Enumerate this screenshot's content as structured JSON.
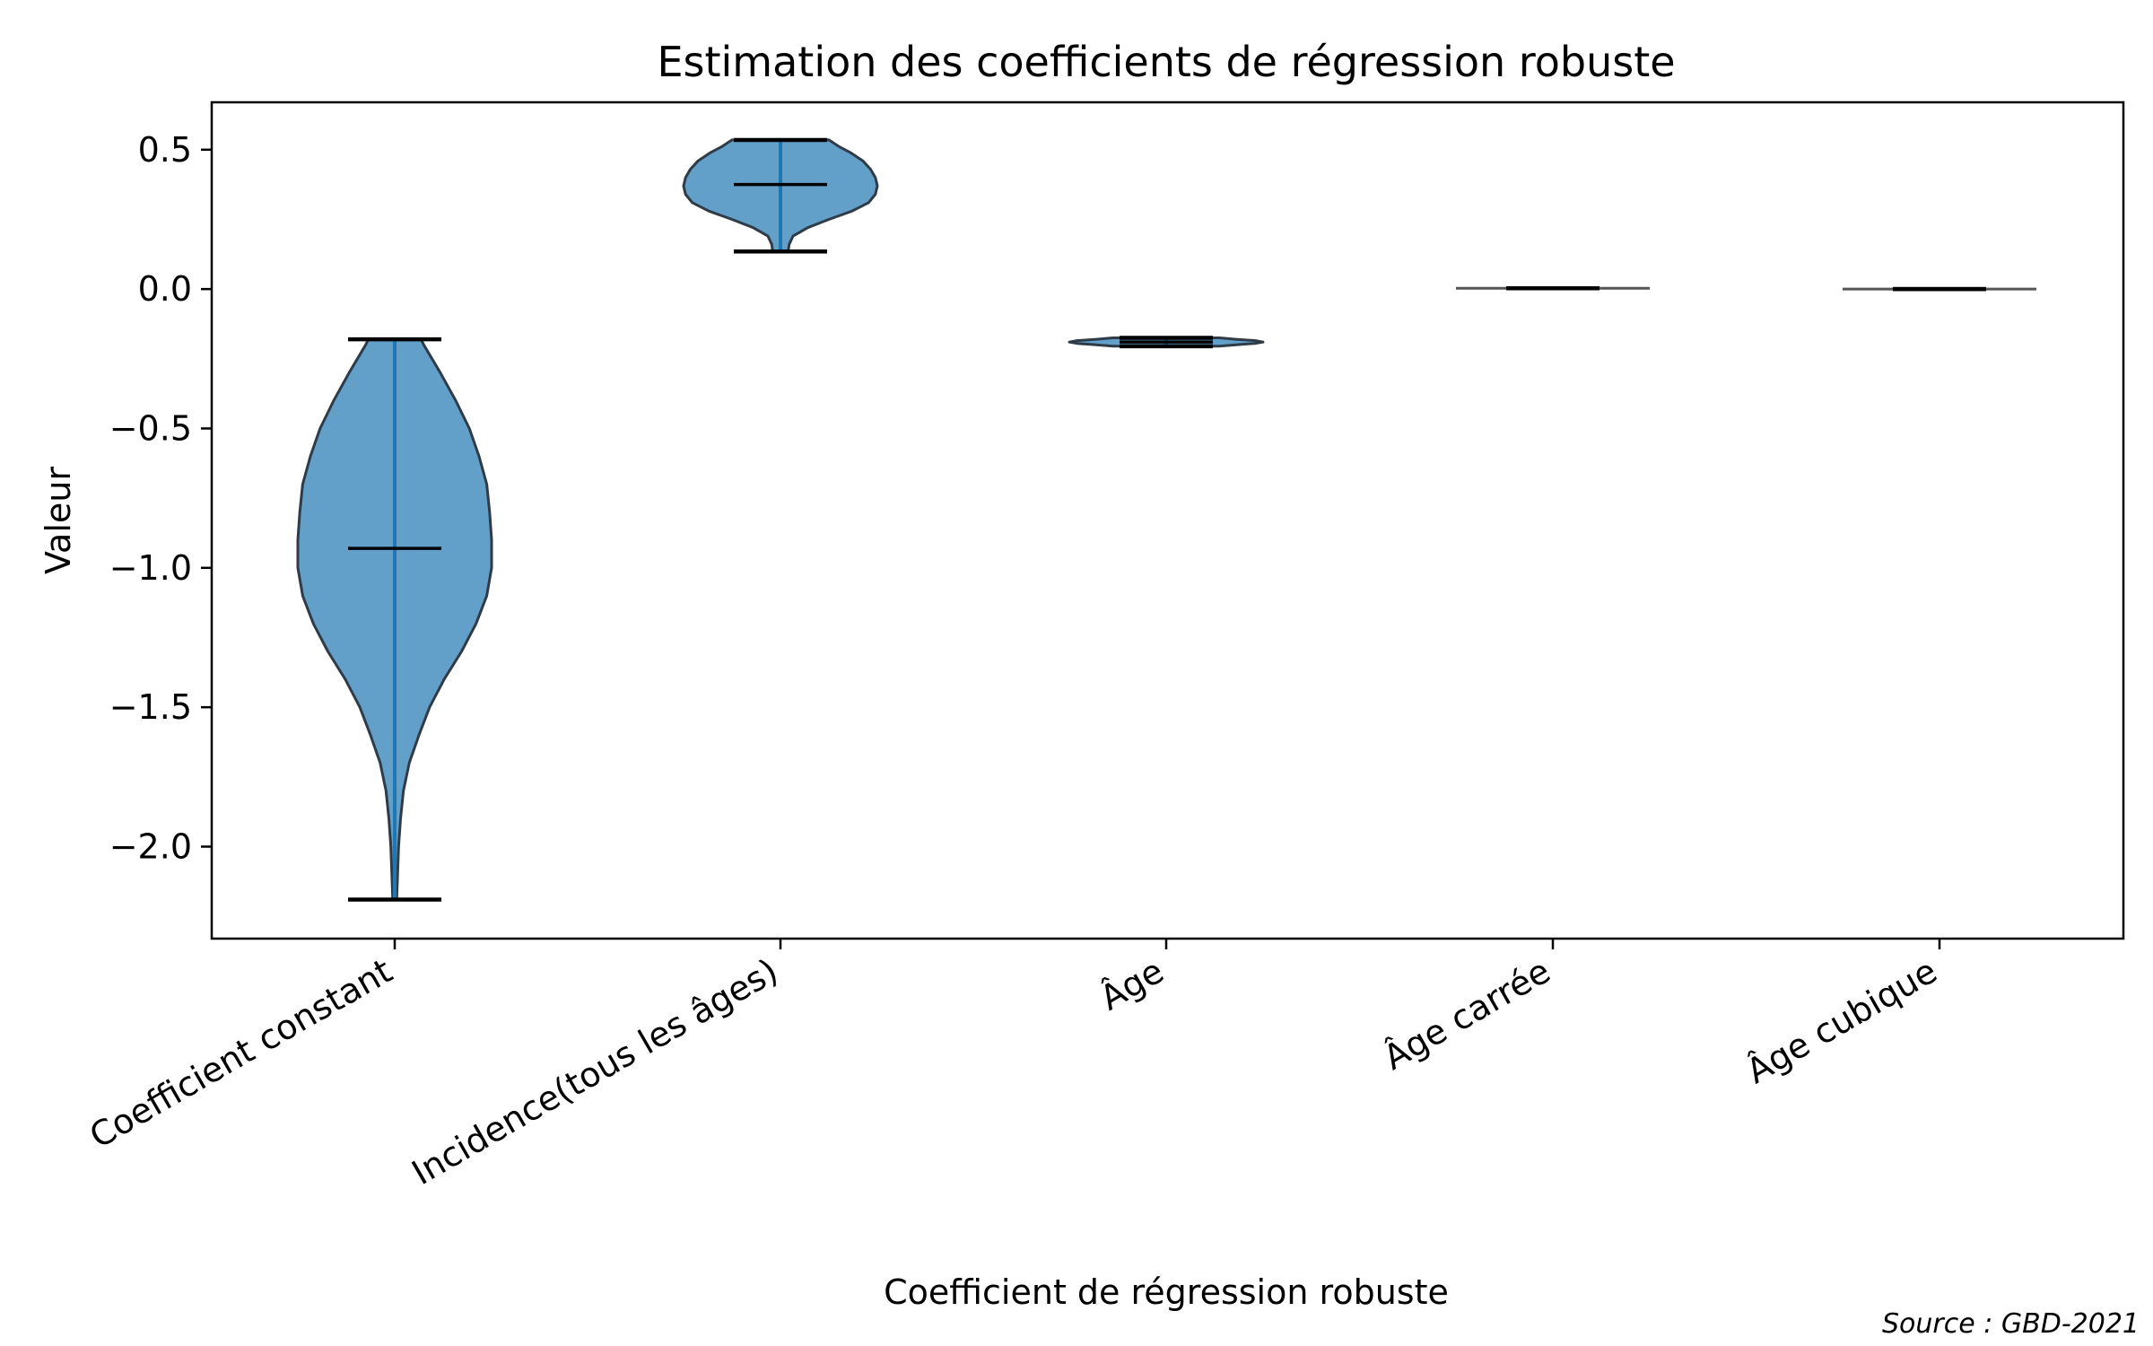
{
  "chart_data": {
    "type": "violin",
    "title": "Estimation des coefficients de régression robuste",
    "xlabel": "Coefficient de régression robuste",
    "ylabel": "Valeur",
    "ylim": [
      -2.33,
      0.67
    ],
    "yticks": [
      0.5,
      0.0,
      -0.5,
      -1.0,
      -1.5,
      -2.0
    ],
    "ytick_labels": [
      "0.5",
      "0.0",
      "−0.5",
      "−1.0",
      "−1.5",
      "−2.0"
    ],
    "grid": false,
    "source": "Source : GBD-2021",
    "colors": {
      "fill": "#1f77b4",
      "edge": "#2f3c48",
      "median": "#000000",
      "bar": "#1f77b4"
    },
    "categories": [
      "Coefficient constant",
      "Incidence(tous les âges)",
      "Âge",
      "Âge carrée",
      "Âge cubique"
    ],
    "violins": [
      {
        "name": "Coefficient constant",
        "min": -2.19,
        "max": -0.18,
        "median": -0.93,
        "density": [
          [
            -2.19,
            0.02
          ],
          [
            -2.1,
            0.03
          ],
          [
            -2.0,
            0.04
          ],
          [
            -1.9,
            0.06
          ],
          [
            -1.8,
            0.09
          ],
          [
            -1.7,
            0.15
          ],
          [
            -1.6,
            0.25
          ],
          [
            -1.5,
            0.36
          ],
          [
            -1.4,
            0.51
          ],
          [
            -1.3,
            0.69
          ],
          [
            -1.2,
            0.84
          ],
          [
            -1.1,
            0.95
          ],
          [
            -1.0,
            1.0
          ],
          [
            -0.9,
            1.0
          ],
          [
            -0.8,
            0.98
          ],
          [
            -0.7,
            0.95
          ],
          [
            -0.6,
            0.87
          ],
          [
            -0.5,
            0.77
          ],
          [
            -0.4,
            0.63
          ],
          [
            -0.3,
            0.47
          ],
          [
            -0.2,
            0.3
          ],
          [
            -0.18,
            0.27
          ]
        ]
      },
      {
        "name": "Incidence(tous les âges)",
        "min": 0.135,
        "max": 0.535,
        "median": 0.375,
        "density": [
          [
            0.135,
            0.08
          ],
          [
            0.16,
            0.09
          ],
          [
            0.19,
            0.13
          ],
          [
            0.22,
            0.28
          ],
          [
            0.25,
            0.5
          ],
          [
            0.28,
            0.74
          ],
          [
            0.31,
            0.91
          ],
          [
            0.34,
            0.98
          ],
          [
            0.37,
            1.0
          ],
          [
            0.4,
            0.98
          ],
          [
            0.43,
            0.93
          ],
          [
            0.46,
            0.85
          ],
          [
            0.49,
            0.72
          ],
          [
            0.51,
            0.61
          ],
          [
            0.535,
            0.5
          ]
        ]
      },
      {
        "name": "Âge",
        "min": -0.205,
        "max": -0.175,
        "median": -0.19,
        "density": [
          [
            -0.205,
            0.55
          ],
          [
            -0.2,
            0.72
          ],
          [
            -0.195,
            0.92
          ],
          [
            -0.19,
            1.0
          ],
          [
            -0.185,
            0.92
          ],
          [
            -0.18,
            0.72
          ],
          [
            -0.175,
            0.55
          ]
        ]
      },
      {
        "name": "Âge carrée",
        "min": 0.003,
        "max": 0.003,
        "median": 0.003,
        "density": [
          [
            0.003,
            1.0
          ]
        ]
      },
      {
        "name": "Âge cubique",
        "min": 0.0,
        "max": 0.0,
        "median": 0.0,
        "density": [
          [
            0.0,
            1.0
          ]
        ]
      }
    ]
  }
}
